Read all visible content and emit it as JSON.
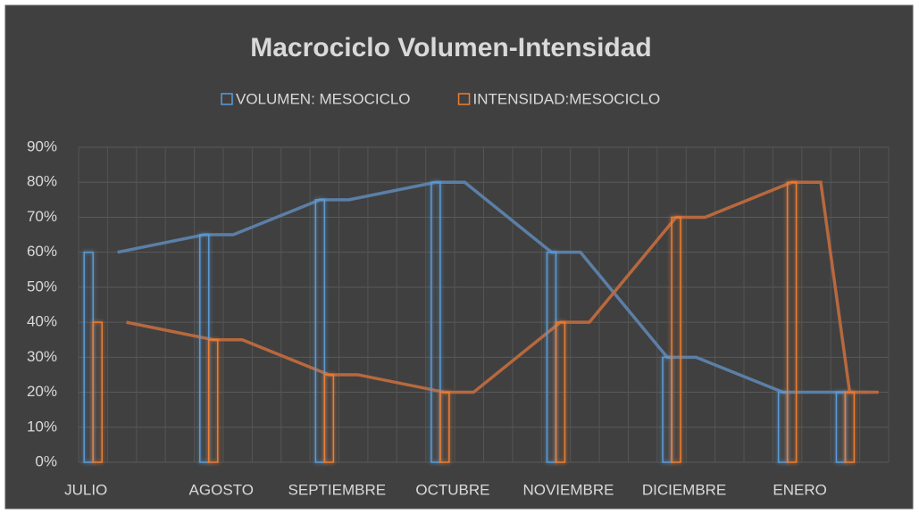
{
  "chart_data": {
    "type": "bar",
    "title": "Macrociclo Volumen-Intensidad",
    "categories": [
      "JULIO",
      null,
      null,
      null,
      "AGOSTO",
      null,
      null,
      null,
      "SEPTIEMBRE",
      null,
      null,
      null,
      "OCTUBRE",
      null,
      null,
      null,
      "NOVIEMBRE",
      null,
      null,
      null,
      "DICIEMBRE",
      null,
      null,
      null,
      "ENERO",
      null,
      null,
      null
    ],
    "series": [
      {
        "name": "VOLUMEN: MESOCICLO",
        "color": "#5b9bd5",
        "values": [
          60,
          null,
          null,
          null,
          65,
          null,
          null,
          null,
          75,
          null,
          null,
          null,
          80,
          null,
          null,
          null,
          60,
          null,
          null,
          null,
          30,
          null,
          null,
          null,
          20,
          null,
          20,
          null
        ]
      },
      {
        "name": "INTENSIDAD:MESOCICLO",
        "color": "#ed7d31",
        "values": [
          40,
          null,
          null,
          null,
          35,
          null,
          null,
          null,
          25,
          null,
          null,
          null,
          20,
          null,
          null,
          null,
          40,
          null,
          null,
          null,
          70,
          null,
          null,
          null,
          80,
          null,
          20,
          null
        ]
      }
    ],
    "lines": [
      {
        "color": "#5b7fa6",
        "x": [
          1,
          4,
          5,
          8,
          9,
          12,
          13,
          16,
          17,
          20,
          21,
          24,
          25,
          26,
          27
        ],
        "values": [
          60,
          65,
          65,
          75,
          75,
          80,
          80,
          60,
          60,
          30,
          30,
          20,
          20,
          20,
          20
        ]
      },
      {
        "color": "#b8683e",
        "x": [
          1,
          4,
          5,
          8,
          9,
          12,
          13,
          16,
          17,
          20,
          21,
          24,
          25,
          26,
          27
        ],
        "values": [
          40,
          35,
          35,
          25,
          25,
          20,
          20,
          40,
          40,
          70,
          70,
          80,
          80,
          20,
          20
        ]
      }
    ],
    "ylim": [
      0,
      90
    ],
    "yticks": [
      {
        "value": 0,
        "label": "0%"
      },
      {
        "value": 10,
        "label": "10%"
      },
      {
        "value": 20,
        "label": "20%"
      },
      {
        "value": 30,
        "label": "30%"
      },
      {
        "value": 40,
        "label": "40%"
      },
      {
        "value": 50,
        "label": "50%"
      },
      {
        "value": 60,
        "label": "60%"
      },
      {
        "value": 70,
        "label": "70%"
      },
      {
        "value": 80,
        "label": "80%"
      },
      {
        "value": 90,
        "label": "90%"
      }
    ],
    "grid": true,
    "legend": "top"
  }
}
